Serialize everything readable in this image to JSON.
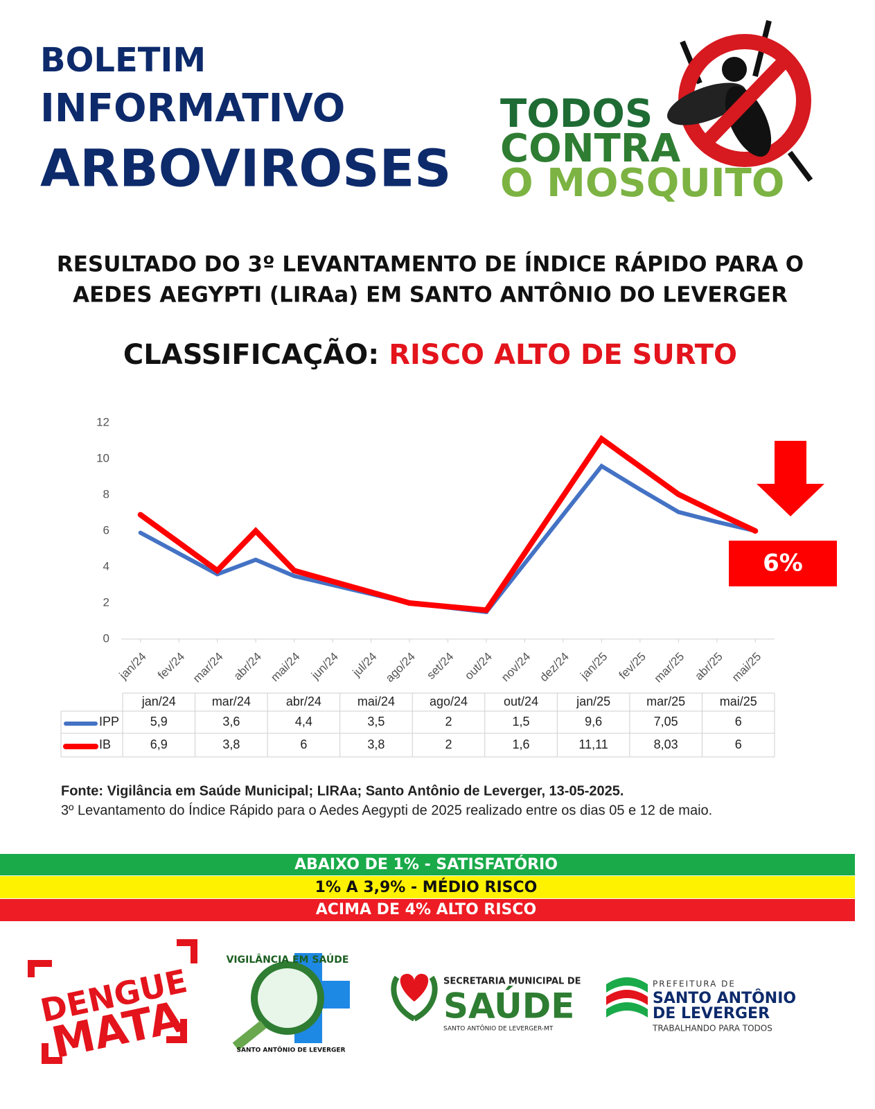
{
  "header": {
    "line1": "BOLETIM",
    "line2": "INFORMATIVO",
    "line3": "ARBOVIROSES"
  },
  "campaign": {
    "line1": "TODOS",
    "line2": "CONTRA",
    "line3": "O MOSQUITO"
  },
  "subtitle": {
    "line1": "RESULTADO DO 3º LEVANTAMENTO DE ÍNDICE RÁPIDO PARA O",
    "line2": "AEDES AEGYPTI (LIRAa) EM SANTO ANTÔNIO DO LEVERGER"
  },
  "classification": {
    "label": "CLASSIFICAÇÃO:",
    "value": "RISCO ALTO DE SURTO"
  },
  "chart_data": {
    "type": "line",
    "categories": [
      "jan/24",
      "fev/24",
      "mar/24",
      "abr/24",
      "mai/24",
      "jun/24",
      "jul/24",
      "ago/24",
      "set/24",
      "out/24",
      "nov/24",
      "dez/24",
      "jan/25",
      "fev/25",
      "mar/25",
      "abr/25",
      "mai/25"
    ],
    "series": [
      {
        "name": "IPP",
        "color": "#4472c4",
        "values": [
          5.9,
          4.75,
          3.6,
          4.4,
          3.5,
          3.0,
          2.5,
          2,
          1.75,
          1.5,
          4.2,
          6.9,
          9.6,
          8.3,
          7.05,
          6.5,
          6
        ]
      },
      {
        "name": "IB",
        "color": "#ff0000",
        "values": [
          6.9,
          5.35,
          3.8,
          6,
          3.8,
          3.2,
          2.6,
          2,
          1.8,
          1.6,
          4.77,
          7.94,
          11.11,
          9.57,
          8.03,
          7.0,
          6
        ]
      }
    ],
    "ylim": [
      0,
      12
    ],
    "yticks": [
      0,
      2,
      4,
      6,
      8,
      10,
      12
    ],
    "annotation": "6%"
  },
  "table": {
    "columns": [
      "jan/24",
      "mar/24",
      "abr/24",
      "mai/24",
      "ago/24",
      "out/24",
      "jan/25",
      "mar/25",
      "mai/25"
    ],
    "rows": [
      [
        "5,9",
        "3,6",
        "4,4",
        "3,5",
        "2",
        "1,5",
        "9,6",
        "7,05",
        "6"
      ],
      [
        "6,9",
        "3,8",
        "6",
        "3,8",
        "2",
        "1,6",
        "11,11",
        "8,03",
        "6"
      ]
    ]
  },
  "source": {
    "line1": "Fonte: Vigilância em Saúde Municipal; LIRAa;  Santo Antônio de Leverger, 13-05-2025.",
    "line2": "3º Levantamento do Índice Rápido para o Aedes Aegypti de 2025 realizado entre os dias 05 e 12 de maio."
  },
  "risk_levels": [
    "ABAIXO DE 1% - SATISFATÓRIO",
    "1% A 3,9% - MÉDIO RISCO",
    "ACIMA DE 4% ALTO RISCO"
  ],
  "logos": {
    "dengue": {
      "line1": "DENGUE",
      "line2": "MATA"
    },
    "vigilancia": {
      "title": "VIGILÂNCIA EM SAÚDE",
      "place": "SANTO ANTÔNIO DE LEVERGER"
    },
    "secretaria": {
      "line1": "SECRETARIA MUNICIPAL DE",
      "line2": "SAÚDE",
      "line3": "SANTO ANTÔNIO DE LEVERGER-MT"
    },
    "prefeitura": {
      "line1": "PREFEITURA DE",
      "line2": "SANTO ANTÔNIO",
      "line3": "DE LEVERGER",
      "line4": "TRABALHANDO PARA TODOS"
    }
  }
}
